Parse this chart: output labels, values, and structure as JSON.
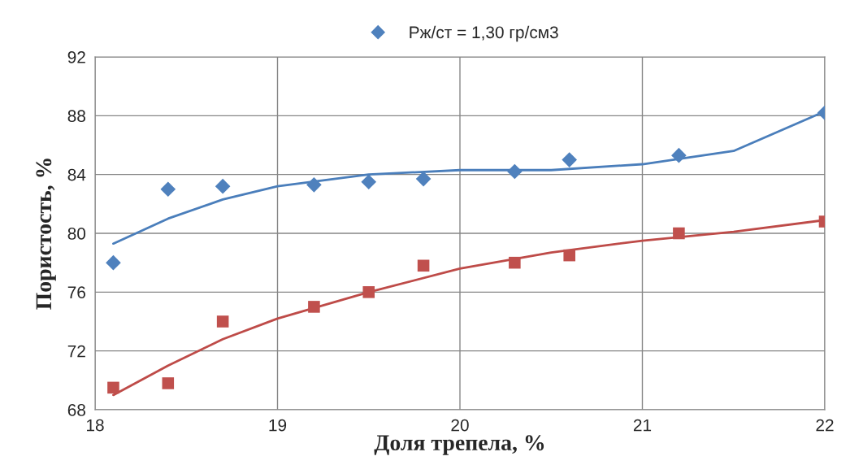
{
  "chart_data": {
    "type": "scatter",
    "xlabel": "Доля трепела, %",
    "ylabel": "Пористость, %",
    "xlim": [
      18,
      22
    ],
    "xticks": [
      18,
      19,
      20,
      21,
      22
    ],
    "ylim": [
      68,
      92
    ],
    "yticks": [
      68,
      72,
      76,
      80,
      84,
      88,
      92
    ],
    "grid": true,
    "legend": "top",
    "series": [
      {
        "name": "Рж/ст = 1,30 гр/см3",
        "marker": "diamond",
        "color": "#4f81bd",
        "x": [
          18.1,
          18.4,
          18.7,
          19.2,
          19.5,
          19.8,
          20.3,
          20.6,
          21.2,
          22.0
        ],
        "values": [
          78.0,
          83.0,
          83.2,
          83.3,
          83.5,
          83.7,
          84.2,
          85.0,
          85.3,
          88.2
        ]
      },
      {
        "marker": "square",
        "color": "#c0504d",
        "x": [
          18.1,
          18.4,
          18.7,
          19.2,
          19.5,
          19.8,
          20.3,
          20.6,
          21.2,
          22.0
        ],
        "values": [
          69.5,
          69.8,
          74.0,
          75.0,
          76.0,
          77.8,
          78.0,
          78.5,
          80.0,
          80.8
        ]
      },
      {
        "type": "line",
        "color": "#4a7ebb",
        "x": [
          18.1,
          18.4,
          18.7,
          19.0,
          19.5,
          20.0,
          20.5,
          21.0,
          21.5,
          22.0
        ],
        "values": [
          79.3,
          81.0,
          82.3,
          83.2,
          84.0,
          84.3,
          84.3,
          84.7,
          85.6,
          88.3
        ]
      },
      {
        "type": "line",
        "color": "#be4b48",
        "x": [
          18.1,
          18.4,
          18.7,
          19.0,
          19.5,
          20.0,
          20.5,
          21.0,
          21.5,
          22.0
        ],
        "values": [
          69.0,
          71.0,
          72.8,
          74.2,
          76.0,
          77.6,
          78.7,
          79.5,
          80.1,
          80.9
        ]
      }
    ]
  }
}
